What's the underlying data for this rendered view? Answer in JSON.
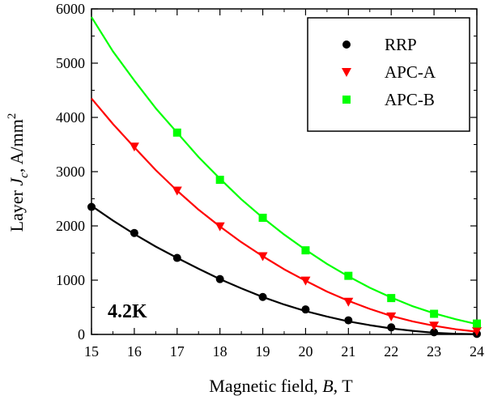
{
  "chart_data": {
    "type": "scatter",
    "title": "",
    "xlabel": {
      "prefix": "Magnetic field, ",
      "var": "B",
      "suffix": ", T"
    },
    "ylabel": {
      "prefix": "Layer ",
      "var": "J",
      "sub": "c",
      "suffix": ", A/mm",
      "sup": "2"
    },
    "xlim": [
      15,
      24
    ],
    "ylim": [
      0,
      6000
    ],
    "x_ticks": [
      15,
      16,
      17,
      18,
      19,
      20,
      21,
      22,
      23,
      24
    ],
    "y_ticks": [
      0,
      1000,
      2000,
      3000,
      4000,
      5000,
      6000
    ],
    "grid": false,
    "legend_position": "top-right",
    "annotation": "4.2K",
    "series": [
      {
        "name": "RRP",
        "color": "#000000",
        "marker": "circle",
        "x": [
          15,
          16,
          17,
          18,
          19,
          20,
          21,
          22,
          23,
          24
        ],
        "y": [
          2350,
          1870,
          1410,
          1020,
          690,
          460,
          260,
          130,
          40,
          10
        ],
        "fit_x": [
          15,
          15.5,
          16,
          16.5,
          17,
          17.5,
          18,
          18.5,
          19,
          19.5,
          20,
          20.5,
          21,
          21.5,
          22,
          22.5,
          23,
          23.5,
          24
        ],
        "fit_y": [
          2370,
          2100,
          1850,
          1620,
          1410,
          1210,
          1020,
          850,
          690,
          550,
          430,
          330,
          240,
          170,
          110,
          65,
          30,
          12,
          5
        ]
      },
      {
        "name": "APC-A",
        "color": "#ff0000",
        "marker": "triangle-down",
        "x": [
          16,
          17,
          18,
          19,
          20,
          21,
          22,
          23,
          24
        ],
        "y": [
          3460,
          2650,
          1990,
          1440,
          990,
          600,
          330,
          160,
          60
        ],
        "fit_x": [
          15,
          15.5,
          16,
          16.5,
          17,
          17.5,
          18,
          18.5,
          19,
          19.5,
          20,
          20.5,
          21,
          21.5,
          22,
          22.5,
          23,
          23.5,
          24
        ],
        "fit_y": [
          4350,
          3880,
          3450,
          3030,
          2650,
          2300,
          1990,
          1700,
          1440,
          1200,
          990,
          790,
          620,
          470,
          340,
          240,
          160,
          95,
          50
        ]
      },
      {
        "name": "APC-B",
        "color": "#00ff00",
        "marker": "square",
        "x": [
          17,
          18,
          19,
          20,
          21,
          22,
          23,
          24
        ],
        "y": [
          3720,
          2850,
          2150,
          1550,
          1080,
          670,
          380,
          200
        ],
        "fit_x": [
          15,
          15.5,
          16,
          16.5,
          17,
          17.5,
          18,
          18.5,
          19,
          19.5,
          20,
          20.5,
          21,
          21.5,
          22,
          22.5,
          23,
          23.5,
          24
        ],
        "fit_y": [
          5850,
          5220,
          4680,
          4170,
          3720,
          3270,
          2870,
          2490,
          2150,
          1840,
          1560,
          1300,
          1070,
          860,
          680,
          520,
          390,
          280,
          190
        ]
      }
    ]
  }
}
